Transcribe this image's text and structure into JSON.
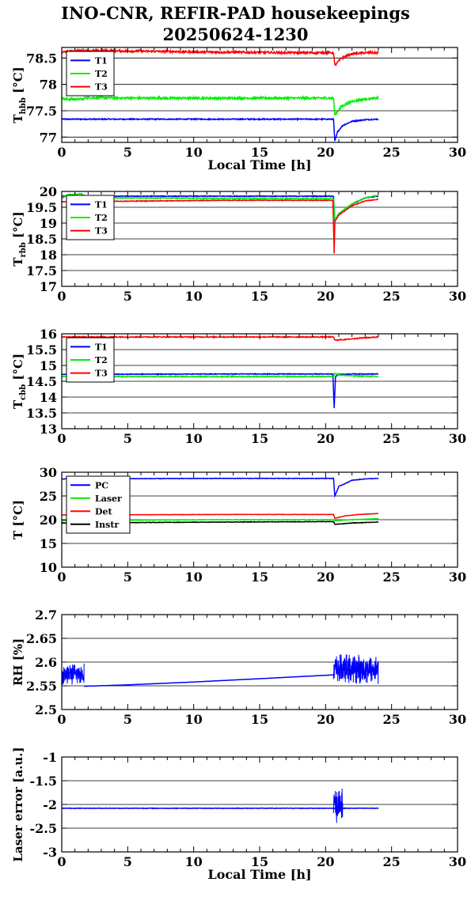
{
  "title": {
    "line1": "INO-CNR, REFIR-PAD housekeepings",
    "line2": "20250624-1230"
  },
  "chart_data": [
    {
      "type": "line",
      "ylabel": "T",
      "ylabel_sub": "hbb",
      "ylabel_unit": "[°C]",
      "xlabel": "Local Time [h]",
      "xlim": [
        0,
        30
      ],
      "ylim": [
        76.9,
        78.7
      ],
      "yticks": [
        77,
        77.5,
        78,
        78.5
      ],
      "xticks": [
        0,
        5,
        10,
        15,
        20,
        25,
        30
      ],
      "grid": "horizontal",
      "legend": "top-left",
      "series": [
        {
          "name": "T1",
          "color": "#0000ff",
          "noise": 0.01,
          "x": [
            0,
            6,
            12,
            18,
            20.4,
            20.6,
            20.7,
            20.9,
            21.3,
            22,
            23,
            24
          ],
          "y": [
            77.34,
            77.34,
            77.34,
            77.34,
            77.34,
            77.34,
            76.92,
            77.1,
            77.22,
            77.3,
            77.33,
            77.34
          ]
        },
        {
          "name": "T2",
          "color": "#00ee00",
          "noise": 0.02,
          "x": [
            0,
            0.2,
            1.6,
            1.8,
            6,
            12,
            18,
            20.4,
            20.6,
            20.7,
            21.2,
            22,
            23,
            24
          ],
          "y": [
            77.75,
            77.72,
            77.72,
            77.75,
            77.74,
            77.74,
            77.74,
            77.74,
            77.74,
            77.42,
            77.58,
            77.68,
            77.72,
            77.74
          ]
        },
        {
          "name": "T3",
          "color": "#ff0000",
          "noise": 0.02,
          "x": [
            0,
            0.2,
            1.6,
            2,
            6,
            12,
            18,
            20.4,
            20.6,
            20.7,
            21.2,
            22,
            23,
            24
          ],
          "y": [
            78.6,
            78.62,
            78.64,
            78.64,
            78.63,
            78.61,
            78.6,
            78.6,
            78.6,
            78.36,
            78.5,
            78.58,
            78.6,
            78.6
          ]
        }
      ]
    },
    {
      "type": "line",
      "ylabel": "T",
      "ylabel_sub": "rbb",
      "ylabel_unit": "[°C]",
      "xlim": [
        0,
        30
      ],
      "ylim": [
        17,
        20
      ],
      "yticks": [
        17,
        17.5,
        18,
        18.5,
        19,
        19.5,
        20
      ],
      "xticks": [
        0,
        5,
        10,
        15,
        20,
        25,
        30
      ],
      "grid": "horizontal",
      "legend": "top-left",
      "series": [
        {
          "name": "T1",
          "color": "#0000ff",
          "noise": 0.01,
          "x": [
            0,
            12,
            20.6,
            20.7,
            21,
            22,
            23,
            24
          ],
          "y": [
            19.85,
            19.85,
            19.85,
            19.05,
            19.3,
            19.6,
            19.8,
            19.85
          ]
        },
        {
          "name": "T2",
          "color": "#00ee00",
          "noise": 0.015,
          "x": [
            0,
            0.5,
            1.5,
            2,
            12,
            20.6,
            20.7,
            21,
            22,
            23,
            24
          ],
          "y": [
            19.78,
            19.9,
            19.92,
            19.8,
            19.78,
            19.78,
            19.1,
            19.3,
            19.6,
            19.8,
            19.88
          ]
        },
        {
          "name": "T3",
          "color": "#ff0000",
          "noise": 0.01,
          "x": [
            0,
            12,
            20.55,
            20.65,
            20.7,
            21,
            22,
            23,
            24
          ],
          "y": [
            19.67,
            19.72,
            19.72,
            18.03,
            19.05,
            19.25,
            19.55,
            19.7,
            19.75
          ]
        }
      ]
    },
    {
      "type": "line",
      "ylabel": "T",
      "ylabel_sub": "cbb",
      "ylabel_unit": "[°C]",
      "xlim": [
        0,
        30
      ],
      "ylim": [
        13,
        16
      ],
      "yticks": [
        13,
        13.5,
        14,
        14.5,
        15,
        15.5,
        16
      ],
      "xticks": [
        0,
        5,
        10,
        15,
        20,
        25,
        30
      ],
      "grid": "horizontal",
      "legend": "top-left",
      "series": [
        {
          "name": "T1",
          "color": "#0000ff",
          "noise": 0.01,
          "x": [
            0,
            12,
            20.55,
            20.65,
            20.75,
            21,
            22,
            24
          ],
          "y": [
            14.72,
            14.73,
            14.73,
            13.65,
            14.65,
            14.72,
            14.73,
            14.73
          ]
        },
        {
          "name": "T2",
          "color": "#00ee00",
          "noise": 0.015,
          "x": [
            0,
            12,
            20.6,
            20.7,
            21,
            22,
            24
          ],
          "y": [
            14.65,
            14.65,
            14.65,
            14.75,
            14.7,
            14.67,
            14.65
          ]
        },
        {
          "name": "T3",
          "color": "#ff0000",
          "noise": 0.015,
          "x": [
            0,
            12,
            20.6,
            20.7,
            21.5,
            22.5,
            24
          ],
          "y": [
            15.9,
            15.9,
            15.9,
            15.8,
            15.82,
            15.86,
            15.9
          ]
        }
      ]
    },
    {
      "type": "line",
      "ylabel": "T [°C]",
      "xlim": [
        0,
        30
      ],
      "ylim": [
        10,
        30
      ],
      "yticks": [
        10,
        15,
        20,
        25,
        30
      ],
      "xticks": [
        0,
        5,
        10,
        15,
        20,
        25,
        30
      ],
      "grid": "horizontal",
      "legend": "top-left",
      "series": [
        {
          "name": "PC",
          "color": "#0000ff",
          "noise": 0.05,
          "x": [
            0,
            12,
            20.6,
            20.7,
            21,
            22,
            23,
            24
          ],
          "y": [
            28.6,
            28.7,
            28.7,
            25.0,
            27.0,
            28.3,
            28.6,
            28.7
          ]
        },
        {
          "name": "Laser",
          "color": "#00ee00",
          "noise": 0.05,
          "x": [
            0,
            12,
            20.6,
            20.7,
            22,
            24
          ],
          "y": [
            19.8,
            20.0,
            20.0,
            19.8,
            20.0,
            20.2
          ]
        },
        {
          "name": "Det",
          "color": "#ff0000",
          "noise": 0.03,
          "x": [
            0,
            12,
            20.6,
            20.7,
            21.5,
            22.5,
            24
          ],
          "y": [
            21.0,
            21.1,
            21.1,
            20.3,
            20.8,
            21.1,
            21.3
          ]
        },
        {
          "name": "Instr",
          "color": "#000000",
          "noise": 0.05,
          "x": [
            0,
            12,
            20.6,
            20.7,
            22,
            24
          ],
          "y": [
            19.3,
            19.5,
            19.6,
            19.0,
            19.3,
            19.5
          ]
        }
      ]
    },
    {
      "type": "line",
      "ylabel": "RH [%]",
      "xlim": [
        0,
        30
      ],
      "ylim": [
        2.5,
        2.7
      ],
      "yticks": [
        2.5,
        2.55,
        2.6,
        2.65,
        2.7
      ],
      "xticks": [
        0,
        5,
        10,
        15,
        20,
        25,
        30
      ],
      "grid": "horizontal",
      "series": [
        {
          "name": "RH",
          "color": "#0000ff",
          "noise": 0,
          "x": [
            1.7,
            5,
            10,
            15,
            20.6
          ],
          "y": [
            2.549,
            2.552,
            2.558,
            2.565,
            2.573
          ],
          "noisy_segments": [
            {
              "x0": 0,
              "x1": 1.7,
              "center": 2.575,
              "amp": 0.025
            },
            {
              "x0": 20.6,
              "x1": 24,
              "center": 2.585,
              "amp": 0.035
            }
          ]
        }
      ]
    },
    {
      "type": "line",
      "ylabel": "Laser error [a.u.]",
      "xlabel": "Local Time [h]",
      "xlim": [
        0,
        30
      ],
      "ylim": [
        -3,
        -1
      ],
      "yticks": [
        -3,
        -2.5,
        -2,
        -1.5,
        -1
      ],
      "xticks": [
        0,
        5,
        10,
        15,
        20,
        25,
        30
      ],
      "grid": "horizontal",
      "series": [
        {
          "name": "Laser error",
          "color": "#0000ff",
          "noise": 0.005,
          "x": [
            0,
            20.6,
            22,
            24
          ],
          "y": [
            -2.08,
            -2.08,
            -2.08,
            -2.08
          ],
          "noisy_segments": [
            {
              "x0": 20.6,
              "x1": 21.3,
              "center": -2.0,
              "amp": 0.4
            }
          ]
        }
      ]
    }
  ]
}
